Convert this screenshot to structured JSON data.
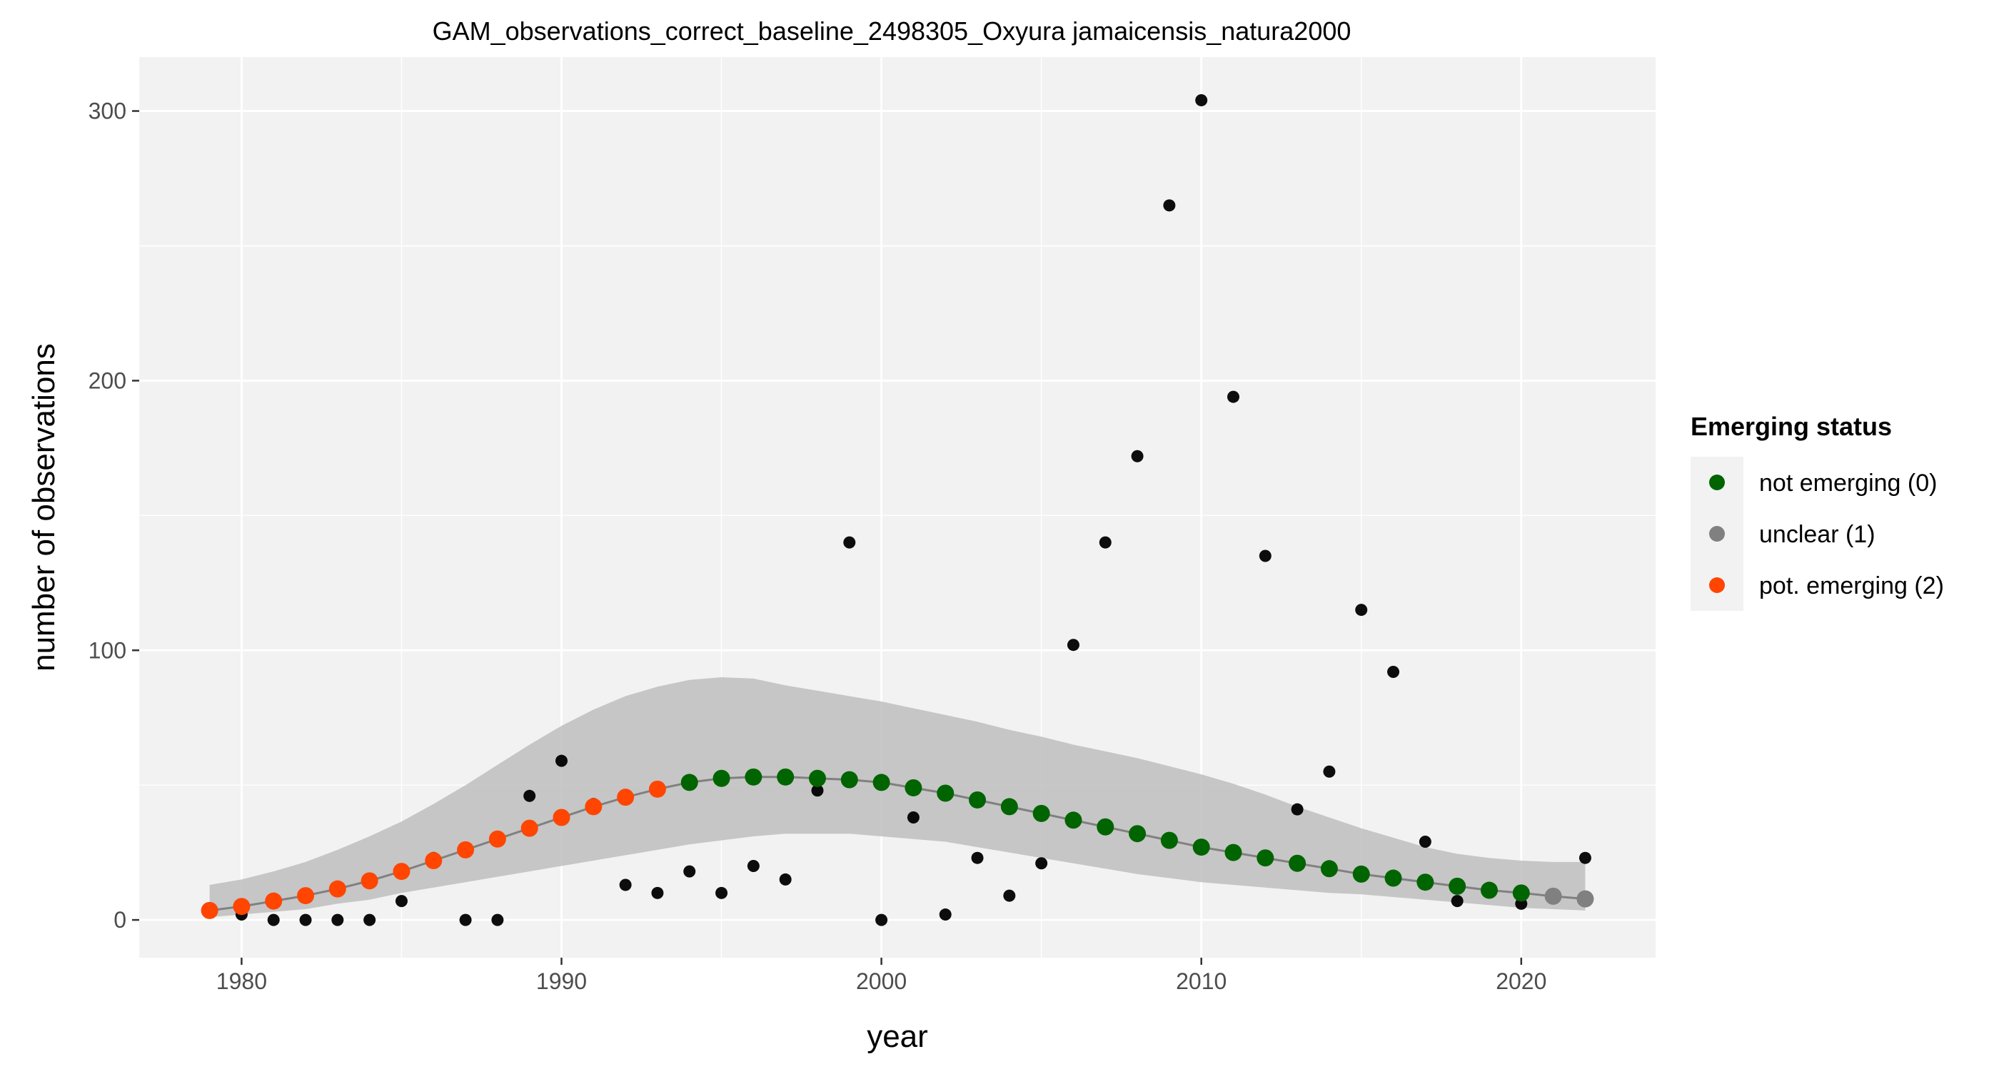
{
  "chart_data": {
    "type": "scatter",
    "title": "GAM_observations_correct_baseline_2498305_Oxyura jamaicensis_natura2000",
    "xlabel": "year",
    "ylabel": "number of observations",
    "xlim": [
      1976.8,
      2024.2
    ],
    "ylim": [
      -14,
      320
    ],
    "x_ticks": [
      1980,
      1990,
      2000,
      2010,
      2020
    ],
    "y_ticks": [
      0,
      100,
      200,
      300
    ],
    "grid": true,
    "legend": {
      "title": "Emerging status",
      "placement": "right",
      "items": [
        {
          "label": "not emerging (0)",
          "color": "#006400"
        },
        {
          "label": "unclear (1)",
          "color": "#808080"
        },
        {
          "label": "pot. emerging (2)",
          "color": "#FF4500"
        }
      ]
    },
    "colors": {
      "panel_background": "#F2F2F2",
      "gridline": "#FFFFFF",
      "ribbon": "#BEBEBE",
      "fit_line": "#808080",
      "observed_points": "#000000"
    },
    "observations": {
      "name": "observed",
      "x": [
        1980,
        1981,
        1982,
        1983,
        1984,
        1985,
        1986,
        1987,
        1988,
        1989,
        1990,
        1991,
        1992,
        1993,
        1994,
        1995,
        1996,
        1997,
        1998,
        1999,
        2000,
        2001,
        2002,
        2003,
        2004,
        2005,
        2006,
        2007,
        2008,
        2009,
        2010,
        2011,
        2012,
        2013,
        2014,
        2015,
        2016,
        2017,
        2018,
        2020,
        2022
      ],
      "y": [
        2,
        0,
        0,
        0,
        0,
        7,
        23,
        0,
        0,
        46,
        59,
        43,
        13,
        10,
        18,
        10,
        20,
        15,
        48,
        140,
        0,
        38,
        2,
        23,
        9,
        21,
        102,
        140,
        172,
        265,
        304,
        194,
        135,
        41,
        55,
        115,
        92,
        29,
        7,
        6,
        23
      ]
    },
    "fit": {
      "x": [
        1979,
        1980,
        1981,
        1982,
        1983,
        1984,
        1985,
        1986,
        1987,
        1988,
        1989,
        1990,
        1991,
        1992,
        1993,
        1994,
        1995,
        1996,
        1997,
        1998,
        1999,
        2000,
        2001,
        2002,
        2003,
        2004,
        2005,
        2006,
        2007,
        2008,
        2009,
        2010,
        2011,
        2012,
        2013,
        2014,
        2015,
        2016,
        2017,
        2018,
        2019,
        2020,
        2021,
        2022
      ],
      "y": [
        3.5,
        5,
        7,
        9,
        11.5,
        14.5,
        18,
        22,
        26,
        30,
        34,
        38,
        42,
        45.5,
        48.5,
        51,
        52.5,
        53,
        53,
        52.5,
        52,
        51,
        49,
        47,
        44.5,
        42,
        39.5,
        37,
        34.5,
        32,
        29.5,
        27,
        25,
        23,
        21,
        19,
        17,
        15.5,
        14,
        12.5,
        11,
        10,
        8.8,
        7.8
      ],
      "lower": [
        1,
        2,
        3,
        4,
        6,
        7.5,
        10,
        12,
        14,
        16,
        18,
        20,
        22,
        24,
        26,
        28,
        29.5,
        31,
        32,
        32,
        32,
        31,
        30,
        29,
        27,
        25,
        23,
        21,
        19,
        17,
        15.5,
        14,
        13,
        12,
        11,
        10,
        9.5,
        8.5,
        7.5,
        6.5,
        5.5,
        4.5,
        4,
        3.5
      ],
      "upper": [
        13,
        15,
        18,
        21.5,
        26,
        31,
        36.5,
        43,
        50,
        57.5,
        65,
        72,
        78,
        83,
        86.5,
        89,
        90,
        89.5,
        87,
        85,
        83,
        81,
        78.5,
        76,
        73.5,
        70.5,
        68,
        65,
        62.5,
        60,
        57,
        54,
        50.5,
        46.5,
        42,
        38,
        34,
        30.5,
        27,
        24.5,
        23,
        22,
        21.5,
        21.5
      ],
      "status": [
        2,
        2,
        2,
        2,
        2,
        2,
        2,
        2,
        2,
        2,
        2,
        2,
        2,
        2,
        2,
        0,
        0,
        0,
        0,
        0,
        0,
        0,
        0,
        0,
        0,
        0,
        0,
        0,
        0,
        0,
        0,
        0,
        0,
        0,
        0,
        0,
        0,
        0,
        0,
        0,
        0,
        0,
        1,
        1
      ]
    }
  }
}
